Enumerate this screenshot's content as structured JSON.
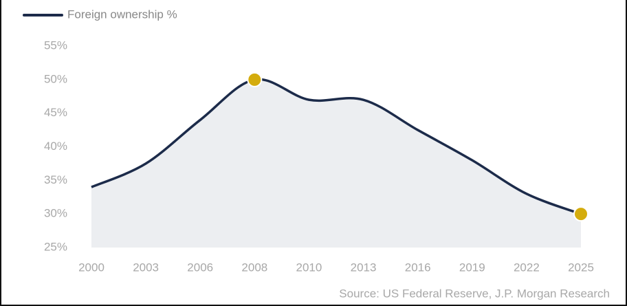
{
  "chart_data": {
    "type": "line",
    "categories": [
      "2000",
      "2003",
      "2006",
      "2008",
      "2010",
      "2013",
      "2016",
      "2019",
      "2022",
      "2025"
    ],
    "series": [
      {
        "name": "Foreign ownership %",
        "color": "#1c2b4a",
        "values": [
          34,
          37.5,
          44,
          50,
          47,
          47,
          42.5,
          38,
          33,
          30
        ]
      }
    ],
    "highlight_color": "#d4ac0d",
    "highlight": [
      3,
      9
    ],
    "area_fill": "#eceef1",
    "ylim": [
      25,
      55
    ],
    "yticks": [
      {
        "value": 25,
        "label": "25%"
      },
      {
        "value": 30,
        "label": "30%"
      },
      {
        "value": 35,
        "label": "35%"
      },
      {
        "value": 40,
        "label": "40%"
      },
      {
        "value": 45,
        "label": "45%"
      },
      {
        "value": 50,
        "label": "50%"
      },
      {
        "value": 55,
        "label": "55%"
      }
    ],
    "source": "Source: US Federal Reserve, J.P. Morgan Research"
  }
}
